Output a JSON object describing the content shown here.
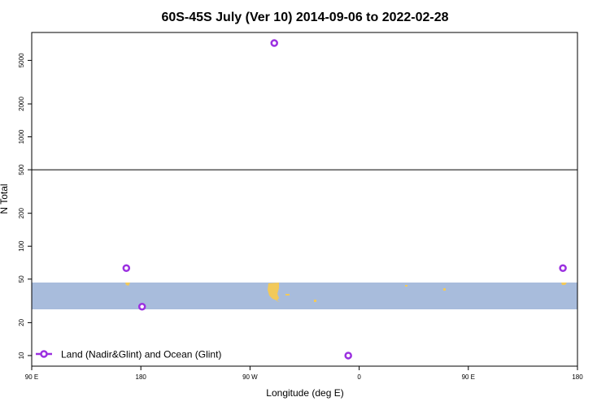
{
  "chart_data": {
    "type": "scatter",
    "title": "60S-45S July (Ver 10)   2014-09-06 to 2022-02-28",
    "xlabel": "Longitude (deg E)",
    "ylabel": "N Total",
    "y_scale": "log",
    "x_ticks": [
      {
        "value": 90,
        "label": "90 E"
      },
      {
        "value": 180,
        "label": "180"
      },
      {
        "value": 270,
        "label": "90 W"
      },
      {
        "value": 360,
        "label": "0"
      },
      {
        "value": 450,
        "label": "90 E"
      },
      {
        "value": 540,
        "label": "180"
      }
    ],
    "xlim": [
      90,
      540
    ],
    "ylim": [
      8,
      9000
    ],
    "y_ticks": [
      10,
      20,
      50,
      100,
      200,
      500,
      1000,
      2000,
      5000
    ],
    "y_break": 500,
    "latitude_band": [
      -60,
      -45
    ],
    "series": [
      {
        "name": "Land (Nadir&Glint) and Ocean (Glint)",
        "color": "#9b30e0",
        "points": [
          {
            "x": 168,
            "y": 63
          },
          {
            "x": 181,
            "y": 28
          },
          {
            "x": 290,
            "y": 7200
          },
          {
            "x": 351,
            "y": 10
          },
          {
            "x": 528,
            "y": 63
          }
        ]
      }
    ],
    "legend_position": "bottom-left",
    "colors": {
      "band": "#a8bcdc",
      "land": "#f2c95a",
      "series": "#9b30e0"
    }
  }
}
